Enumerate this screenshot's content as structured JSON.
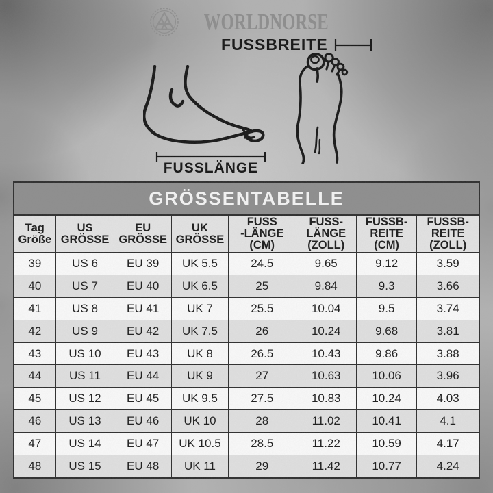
{
  "brand": {
    "name": "WORLDNORSE",
    "logo_icon": "valknut-icon"
  },
  "diagram": {
    "foot_width_label": "FUSSBREITE",
    "foot_length_label": "FUSSLÄNGE"
  },
  "table": {
    "title": "GRÖSSENTABELLE",
    "columns": [
      {
        "id": "tag-groesse",
        "lines": [
          "Tag",
          "Größe"
        ]
      },
      {
        "id": "us-groesse",
        "lines": [
          "US",
          "GRÖSSE"
        ]
      },
      {
        "id": "eu-groesse",
        "lines": [
          "EU",
          "GRÖSSE"
        ]
      },
      {
        "id": "uk-groesse",
        "lines": [
          "UK",
          "GRÖSSE"
        ]
      },
      {
        "id": "fusslaenge-cm",
        "lines": [
          "FUSS",
          "-LÄNGE",
          "(CM)"
        ]
      },
      {
        "id": "fusslaenge-zoll",
        "lines": [
          "FUSS-",
          "LÄNGE",
          "(ZOLL)"
        ]
      },
      {
        "id": "fussbreite-cm",
        "lines": [
          "FUSSB-",
          "REITE",
          "(CM)"
        ]
      },
      {
        "id": "fussbreite-zoll",
        "lines": [
          "FUSSB-",
          "REITE",
          "(ZOLL)"
        ]
      }
    ],
    "rows": [
      [
        "39",
        "US 6",
        "EU 39",
        "UK 5.5",
        "24.5",
        "9.65",
        "9.12",
        "3.59"
      ],
      [
        "40",
        "US 7",
        "EU 40",
        "UK 6.5",
        "25",
        "9.84",
        "9.3",
        "3.66"
      ],
      [
        "41",
        "US 8",
        "EU 41",
        "UK 7",
        "25.5",
        "10.04",
        "9.5",
        "3.74"
      ],
      [
        "42",
        "US 9",
        "EU 42",
        "UK 7.5",
        "26",
        "10.24",
        "9.68",
        "3.81"
      ],
      [
        "43",
        "US 10",
        "EU 43",
        "UK 8",
        "26.5",
        "10.43",
        "9.86",
        "3.88"
      ],
      [
        "44",
        "US 11",
        "EU 44",
        "UK 9",
        "27",
        "10.63",
        "10.06",
        "3.96"
      ],
      [
        "45",
        "US 12",
        "EU 45",
        "UK 9.5",
        "27.5",
        "10.83",
        "10.24",
        "4.03"
      ],
      [
        "46",
        "US 13",
        "EU 46",
        "UK 10",
        "28",
        "11.02",
        "10.41",
        "4.1"
      ],
      [
        "47",
        "US 14",
        "EU 47",
        "UK 10.5",
        "28.5",
        "11.22",
        "10.59",
        "4.17"
      ],
      [
        "48",
        "US 15",
        "EU 48",
        "UK 11",
        "29",
        "11.42",
        "10.77",
        "4.24"
      ]
    ]
  },
  "chart_data": {
    "type": "table",
    "title": "GRÖSSENTABELLE",
    "columns": [
      "Tag Größe",
      "US GRÖSSE",
      "EU GRÖSSE",
      "UK GRÖSSE",
      "FUSS-LÄNGE (CM)",
      "FUSS-LÄNGE (ZOLL)",
      "FUSSB-REITE (CM)",
      "FUSSB-REITE (ZOLL)"
    ],
    "rows": [
      [
        "39",
        "US 6",
        "EU 39",
        "UK 5.5",
        24.5,
        9.65,
        9.12,
        3.59
      ],
      [
        "40",
        "US 7",
        "EU 40",
        "UK 6.5",
        25,
        9.84,
        9.3,
        3.66
      ],
      [
        "41",
        "US 8",
        "EU 41",
        "UK 7",
        25.5,
        10.04,
        9.5,
        3.74
      ],
      [
        "42",
        "US 9",
        "EU 42",
        "UK 7.5",
        26,
        10.24,
        9.68,
        3.81
      ],
      [
        "43",
        "US 10",
        "EU 43",
        "UK 8",
        26.5,
        10.43,
        9.86,
        3.88
      ],
      [
        "44",
        "US 11",
        "EU 44",
        "UK 9",
        27,
        10.63,
        10.06,
        3.96
      ],
      [
        "45",
        "US 12",
        "EU 45",
        "UK 9.5",
        27.5,
        10.83,
        10.24,
        4.03
      ],
      [
        "46",
        "US 13",
        "EU 46",
        "UK 10",
        28,
        11.02,
        10.41,
        4.1
      ],
      [
        "47",
        "US 14",
        "EU 47",
        "UK 10.5",
        28.5,
        11.22,
        10.59,
        4.17
      ],
      [
        "48",
        "US 15",
        "EU 48",
        "UK 11",
        29,
        11.42,
        10.77,
        4.24
      ]
    ]
  },
  "colors": {
    "background": "#b2b2b2",
    "title_bar": "#8e8e8e",
    "title_text": "#f5f5f5",
    "header_row": "#e3e3e3",
    "row_even": "#fafafa",
    "row_alt": "#e0e0e0",
    "grid_border": "#2e2e2e",
    "text_ink": "#1c1c1c",
    "brand_gray": "#8d8d8d",
    "illustration_ink": "#171717"
  }
}
